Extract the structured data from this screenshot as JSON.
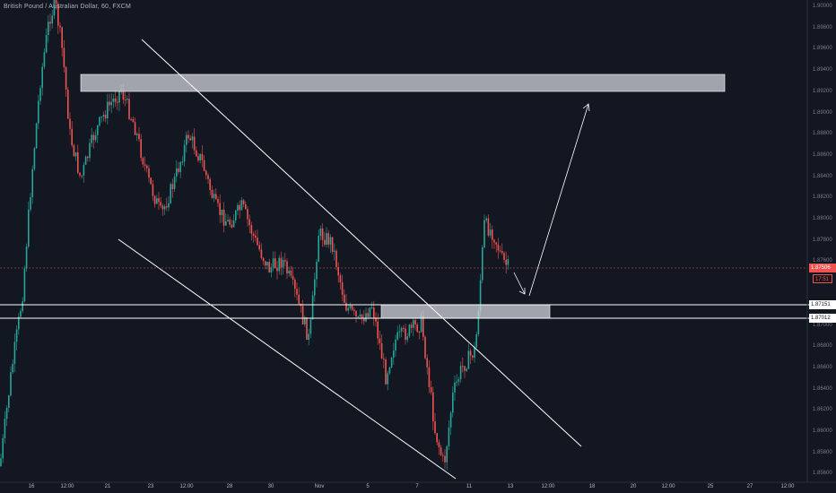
{
  "header": {
    "title": "British Pound / Australian Dollar, 60, FXCM"
  },
  "price_axis": {
    "ticks": [
      "1.90000",
      "1.89800",
      "1.89600",
      "1.89400",
      "1.89200",
      "1.89000",
      "1.88800",
      "1.88600",
      "1.88400",
      "1.88200",
      "1.88000",
      "1.87800",
      "1.87600",
      "1.87400",
      "1.87200",
      "1.87000",
      "1.86800",
      "1.86600",
      "1.86400",
      "1.86200",
      "1.86000",
      "1.85800",
      "1.85600"
    ],
    "current_price": "1.87506",
    "countdown": "17:51",
    "level_upper": "1.87151",
    "level_lower": "1.87012"
  },
  "time_axis": {
    "labels": [
      "16",
      "12:00",
      "21",
      "23",
      "12:00",
      "28",
      "30",
      "Nov",
      "5",
      "7",
      "11",
      "13",
      "12:00",
      "18",
      "20",
      "12:00",
      "25",
      "27",
      "12:00"
    ]
  },
  "colors": {
    "background": "#131722",
    "bull": "#26a69a",
    "bear": "#ef5350",
    "current_price_line": "#ef5350",
    "drawing": "#ffffff",
    "zone_fill": "#d1d4dc"
  }
}
